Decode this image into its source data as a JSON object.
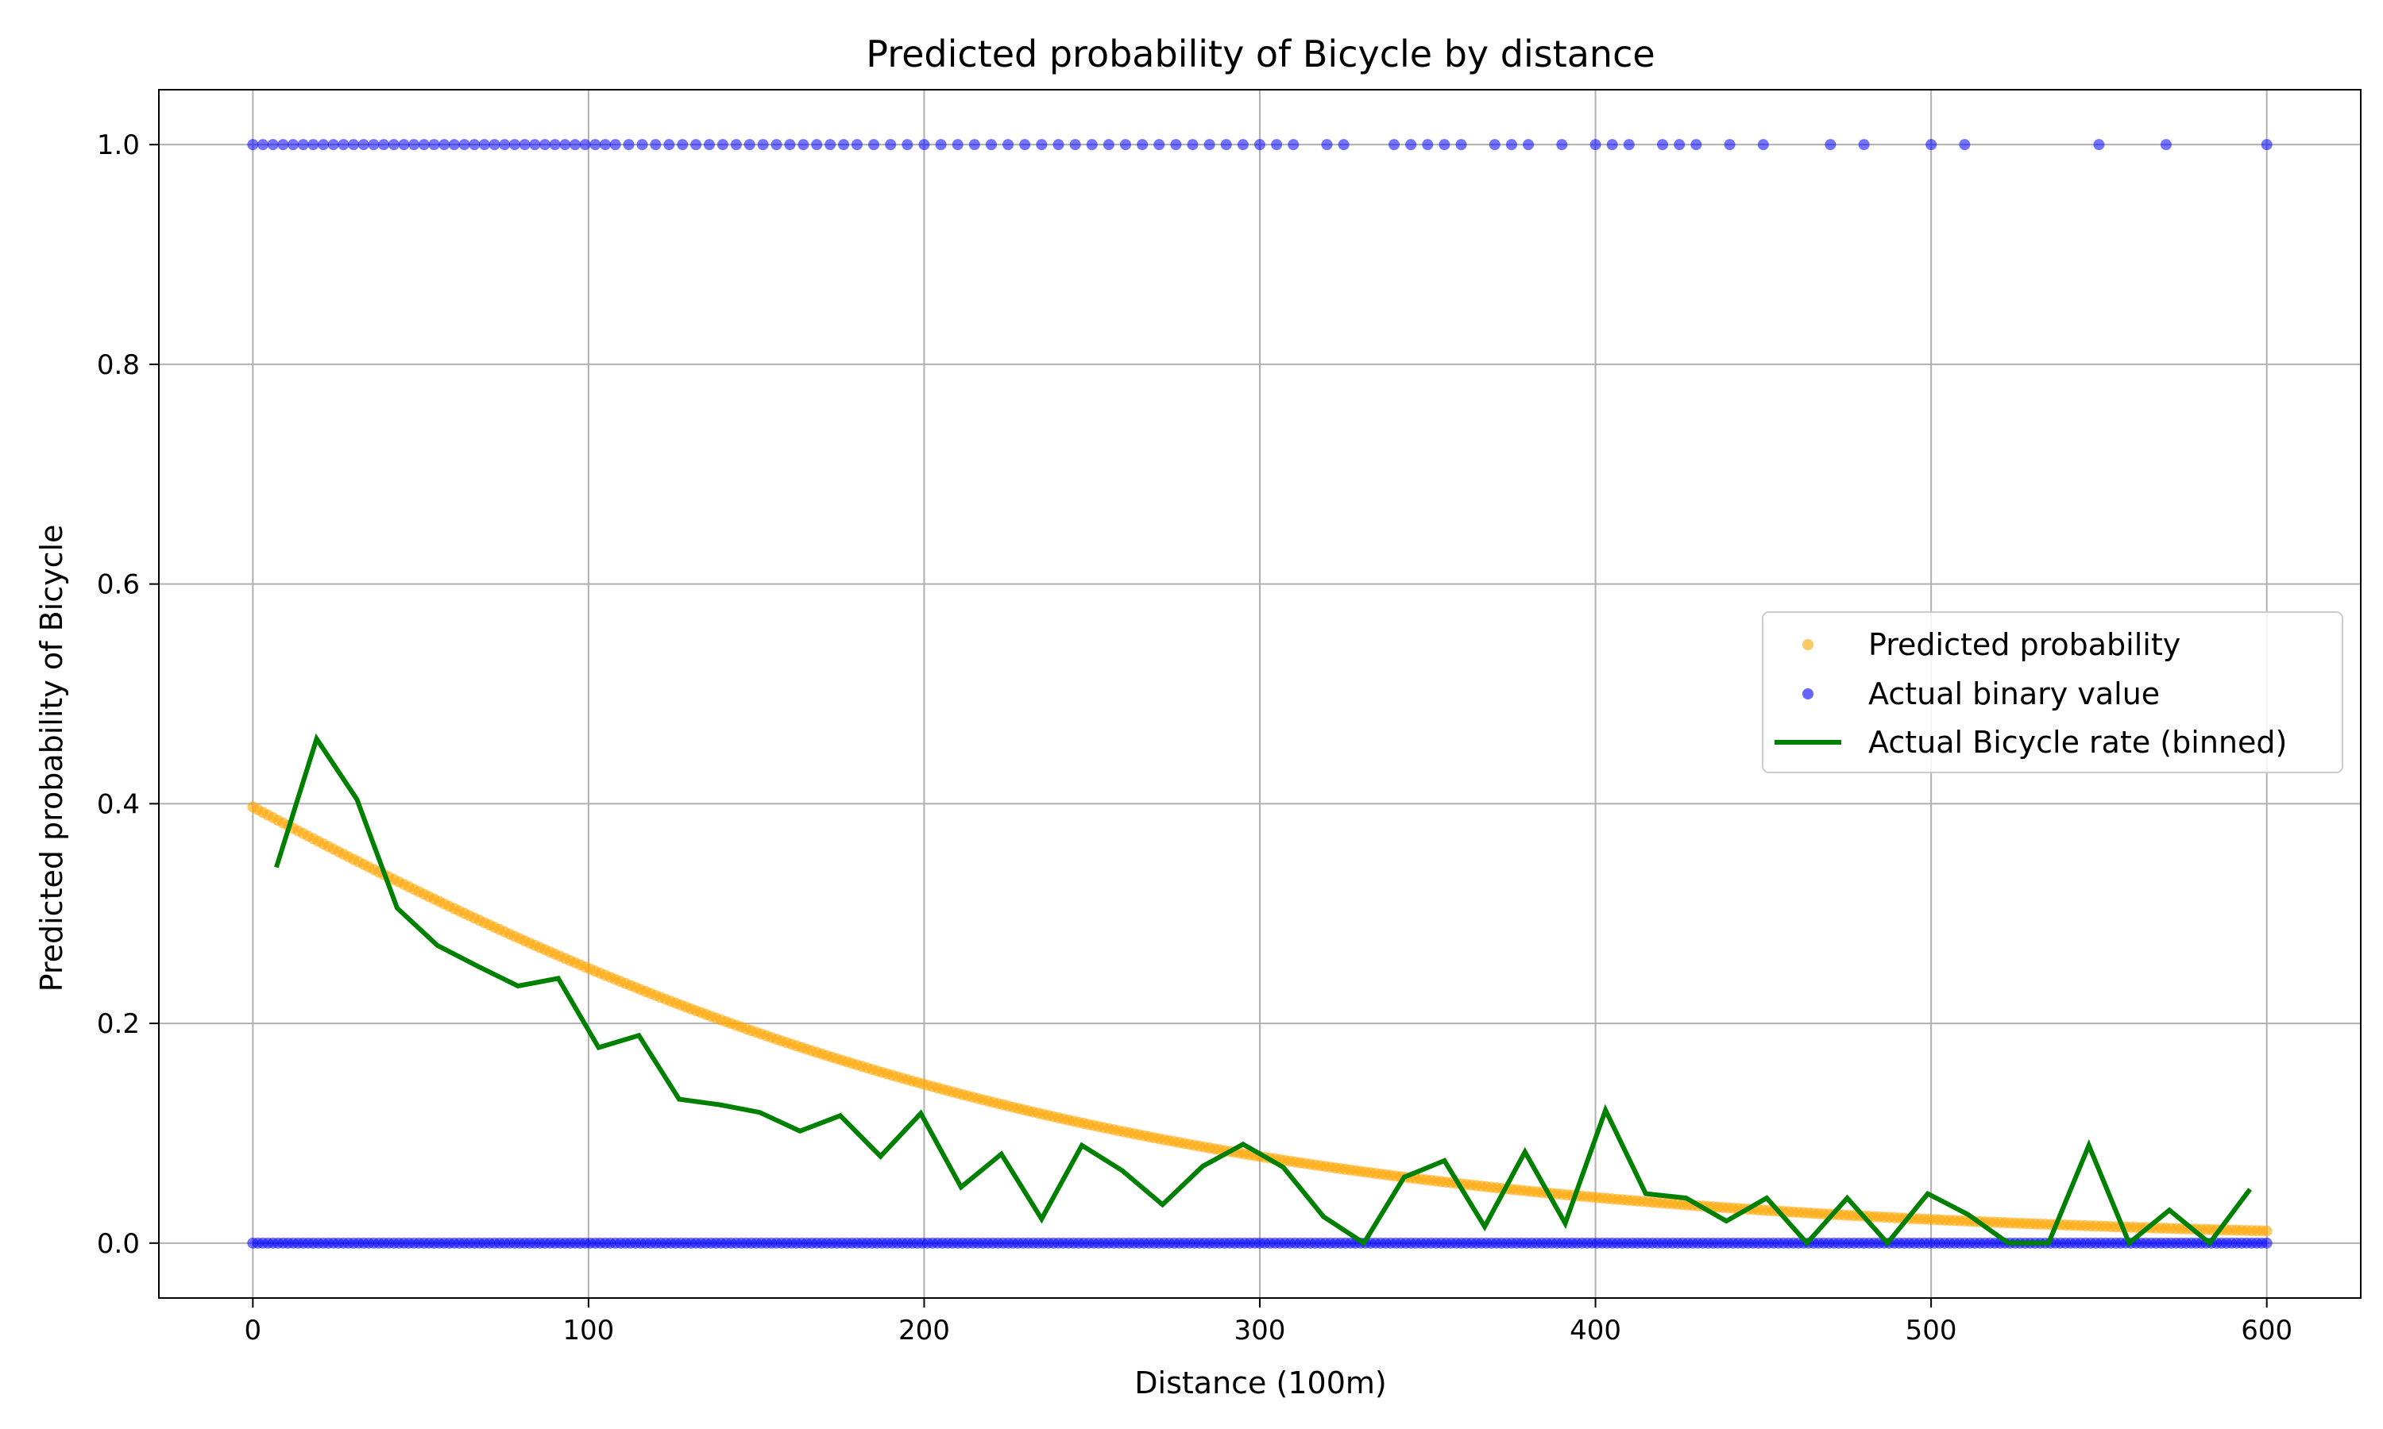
{
  "chart_data": {
    "type": "scatter",
    "title": "Predicted probability of Bicycle by distance",
    "xlabel": "Distance (100m)",
    "ylabel": "Predicted probability of Bicycle",
    "xlim": [
      -28,
      628
    ],
    "ylim": [
      -0.05,
      1.05
    ],
    "xticks": [
      "0",
      "100",
      "200",
      "300",
      "400",
      "500",
      "600"
    ],
    "yticks": [
      "0.0",
      "0.2",
      "0.4",
      "0.6",
      "0.8",
      "1.0"
    ],
    "grid": true,
    "legend_position": "center-right",
    "colors": {
      "predicted": "#FFA500",
      "actual": "#0000FF",
      "binned": "#008000",
      "grid": "#b0b0b0"
    },
    "series": [
      {
        "name": "Predicted probability",
        "kind": "scatter",
        "curve": {
          "x_start": 0,
          "x_end": 600,
          "p_at_start": 0.397,
          "logit_slope": -0.0068
        }
      },
      {
        "name": "Actual binary value",
        "kind": "scatter",
        "y1_x": [
          0,
          3,
          6,
          9,
          12,
          15,
          18,
          21,
          24,
          27,
          30,
          33,
          36,
          39,
          42,
          45,
          48,
          51,
          54,
          57,
          60,
          63,
          66,
          69,
          72,
          75,
          78,
          81,
          84,
          87,
          90,
          93,
          96,
          99,
          102,
          105,
          108,
          112,
          116,
          120,
          124,
          128,
          132,
          136,
          140,
          144,
          148,
          152,
          156,
          160,
          164,
          168,
          172,
          176,
          180,
          185,
          190,
          195,
          200,
          205,
          210,
          215,
          220,
          225,
          230,
          235,
          240,
          245,
          250,
          255,
          260,
          265,
          270,
          275,
          280,
          285,
          290,
          295,
          300,
          305,
          310,
          320,
          325,
          340,
          345,
          350,
          355,
          360,
          370,
          375,
          380,
          390,
          400,
          405,
          410,
          420,
          425,
          430,
          440,
          450,
          470,
          480,
          500,
          510,
          550,
          570,
          600
        ],
        "y0_x_range": [
          0,
          600
        ]
      },
      {
        "name": "Actual Bicycle rate (binned)",
        "kind": "line",
        "x": [
          7,
          19,
          31,
          43,
          55,
          67,
          79,
          91,
          103,
          115,
          127,
          139,
          151,
          163,
          175,
          187,
          199,
          211,
          223,
          235,
          247,
          259,
          271,
          283,
          295,
          307,
          319,
          331,
          343,
          355,
          367,
          379,
          391,
          403,
          415,
          427,
          439,
          451,
          463,
          475,
          487,
          499,
          511,
          523,
          535,
          547,
          559,
          571,
          583,
          595
        ],
        "y": [
          0.342,
          0.459,
          0.404,
          0.305,
          0.271,
          0.252,
          0.234,
          0.241,
          0.178,
          0.189,
          0.131,
          0.126,
          0.119,
          0.102,
          0.116,
          0.079,
          0.118,
          0.051,
          0.081,
          0.022,
          0.089,
          0.066,
          0.035,
          0.07,
          0.09,
          0.069,
          0.024,
          0.0,
          0.06,
          0.075,
          0.015,
          0.083,
          0.018,
          0.121,
          0.045,
          0.041,
          0.02,
          0.041,
          0.0,
          0.041,
          0.0,
          0.045,
          0.026,
          0.0,
          0.0,
          0.089,
          0.0,
          0.03,
          0.0,
          0.049
        ]
      }
    ]
  }
}
